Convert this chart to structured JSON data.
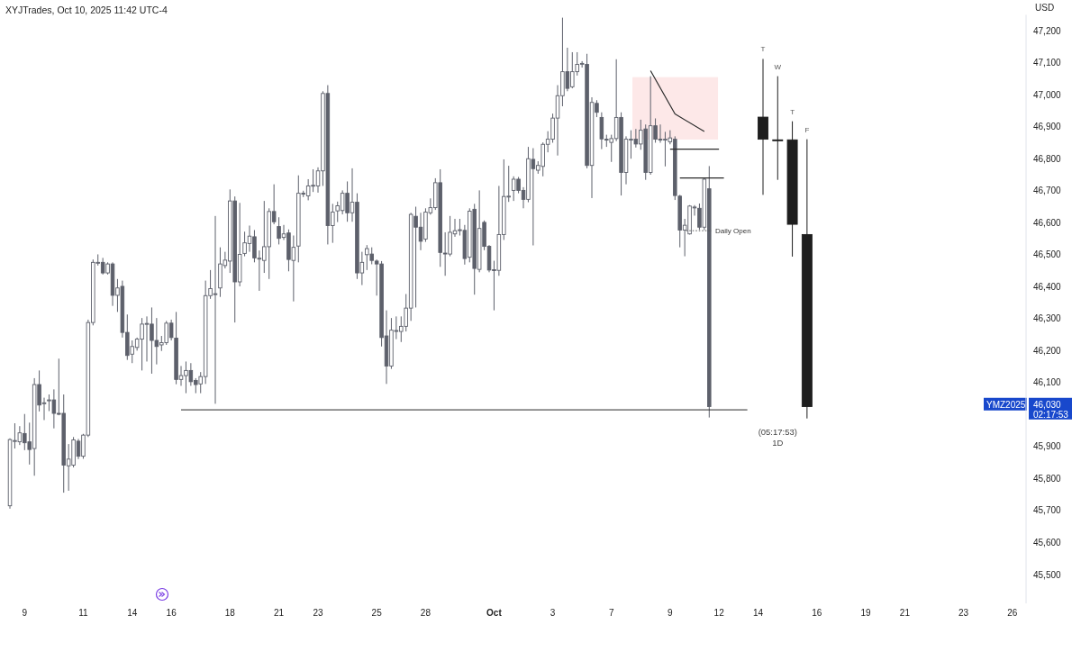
{
  "chart_data": {
    "type": "candlestick",
    "title": "XYJTrades, Oct 10, 2025 11:42 UTC-4",
    "ylabel": "USD",
    "categories": [
      null,
      null,
      null,
      "9",
      null,
      null,
      null,
      null,
      null,
      null,
      null,
      null,
      null,
      null,
      null,
      "11",
      null,
      null,
      null,
      null,
      null,
      null,
      null,
      null,
      null,
      "14",
      null,
      null,
      null,
      null,
      null,
      null,
      null,
      "16",
      null,
      null,
      null,
      null,
      null,
      null,
      null,
      null,
      null,
      null,
      null,
      "18",
      null,
      null,
      null,
      null,
      null,
      null,
      null,
      null,
      null,
      "21",
      null,
      null,
      null,
      null,
      null,
      null,
      null,
      "23",
      null,
      null,
      null,
      null,
      null,
      null,
      null,
      null,
      null,
      null,
      null,
      "25",
      null,
      null,
      null,
      null,
      null,
      null,
      null,
      null,
      null,
      "28",
      null,
      null,
      null,
      null,
      null,
      null,
      null,
      null,
      null,
      null,
      null,
      null,
      null,
      "Oct",
      null,
      null,
      null,
      null,
      null,
      null,
      null,
      null,
      null,
      null,
      null,
      "3",
      null,
      null,
      null,
      null,
      null,
      null,
      null,
      null,
      null,
      null,
      null,
      "7",
      null,
      null,
      null,
      null,
      null,
      null,
      null,
      null,
      null,
      null,
      null,
      "9",
      null,
      null,
      null,
      null,
      null,
      null,
      null,
      null,
      null,
      "12",
      null,
      null,
      null,
      null,
      null,
      null,
      null,
      "14",
      null,
      null,
      null,
      null,
      null,
      null,
      null,
      null,
      null,
      null,
      null,
      "16",
      null,
      null,
      null,
      null,
      null,
      null,
      null,
      null,
      null,
      "19",
      null,
      null,
      null,
      null,
      null,
      null,
      null,
      "21",
      null,
      null,
      null,
      null,
      null,
      null,
      null,
      null,
      null,
      null,
      null,
      "23",
      null,
      null,
      null,
      null,
      null,
      null,
      null,
      null,
      null,
      "26",
      null
    ],
    "ylim": [
      45410,
      47250
    ],
    "yticks": [
      {
        "value": 45500,
        "label": "45,500"
      },
      {
        "value": 45600,
        "label": "45,600"
      },
      {
        "value": 45700,
        "label": "45,700"
      },
      {
        "value": 45800,
        "label": "45,800"
      },
      {
        "value": 45900,
        "label": "45,900"
      },
      {
        "value": 46100,
        "label": "46,100"
      },
      {
        "value": 46200,
        "label": "46,200"
      },
      {
        "value": 46300,
        "label": "46,300"
      },
      {
        "value": 46400,
        "label": "46,400"
      },
      {
        "value": 46500,
        "label": "46,500"
      },
      {
        "value": 46600,
        "label": "46,600"
      },
      {
        "value": 46700,
        "label": "46,700"
      },
      {
        "value": 46800,
        "label": "46,800"
      },
      {
        "value": 46900,
        "label": "46,900"
      },
      {
        "value": 47000,
        "label": "47,000"
      },
      {
        "value": 47100,
        "label": "47,100"
      },
      {
        "value": 47200,
        "label": "47,200"
      }
    ],
    "series": [
      {
        "color": "#5d606b",
        "ohlc": [
          [
            45715,
            45926,
            45706,
            45922
          ],
          [
            45917,
            45973,
            45894,
            45919
          ],
          [
            45915,
            45964,
            45905,
            45943
          ],
          [
            45941,
            46002,
            45889,
            45912
          ],
          [
            45915,
            45975,
            45844,
            45891
          ],
          [
            45894,
            46114,
            45809,
            46094
          ],
          [
            46094,
            46138,
            46010,
            46030
          ],
          [
            46035,
            46053,
            45983,
            46037
          ],
          [
            46044,
            46063,
            46011,
            46046
          ],
          [
            46046,
            46079,
            45957,
            46004
          ],
          [
            46004,
            46175,
            45998,
            46002
          ],
          [
            46004,
            46063,
            45756,
            45842
          ],
          [
            45840,
            45908,
            45762,
            45861
          ],
          [
            45842,
            45930,
            45835,
            45921
          ],
          [
            45917,
            45924,
            45861,
            45870
          ],
          [
            45870,
            45940,
            45862,
            45936
          ],
          [
            45936,
            46297,
            45930,
            46288
          ],
          [
            46288,
            46485,
            46279,
            46476
          ],
          [
            46474,
            46501,
            46466,
            46476
          ],
          [
            46476,
            46490,
            46438,
            46443
          ],
          [
            46443,
            46476,
            46438,
            46471
          ],
          [
            46471,
            46476,
            46340,
            46373
          ],
          [
            46373,
            46424,
            46321,
            46396
          ],
          [
            46401,
            46419,
            46241,
            46257
          ],
          [
            46257,
            46313,
            46171,
            46185
          ],
          [
            46189,
            46232,
            46161,
            46213
          ],
          [
            46210,
            46241,
            46200,
            46236
          ],
          [
            46236,
            46302,
            46138,
            46283
          ],
          [
            46283,
            46307,
            46166,
            46285
          ],
          [
            46283,
            46335,
            46128,
            46232
          ],
          [
            46232,
            46302,
            46157,
            46213
          ],
          [
            46218,
            46246,
            46199,
            46225
          ],
          [
            46225,
            46293,
            46218,
            46286
          ],
          [
            46286,
            46297,
            46232,
            46241
          ],
          [
            46239,
            46321,
            46095,
            46110
          ],
          [
            46110,
            46152,
            46090,
            46122
          ],
          [
            46122,
            46166,
            46067,
            46138
          ],
          [
            46138,
            46161,
            46090,
            46103
          ],
          [
            46107,
            46114,
            46067,
            46094
          ],
          [
            46096,
            46133,
            46067,
            46119
          ],
          [
            46119,
            46419,
            46096,
            46372
          ],
          [
            46372,
            46452,
            46362,
            46394
          ],
          [
            46377,
            46621,
            46034,
            46378
          ],
          [
            46396,
            46523,
            46368,
            46471
          ],
          [
            46466,
            46509,
            46457,
            46483
          ],
          [
            46480,
            46704,
            46443,
            46668
          ],
          [
            46668,
            46682,
            46288,
            46415
          ],
          [
            46415,
            46662,
            46401,
            46501
          ],
          [
            46504,
            46572,
            46495,
            46537
          ],
          [
            46535,
            46591,
            46509,
            46558
          ],
          [
            46556,
            46577,
            46476,
            46490
          ],
          [
            46488,
            46513,
            46387,
            46489
          ],
          [
            46482,
            46668,
            46443,
            46525
          ],
          [
            46525,
            46645,
            46424,
            46635
          ],
          [
            46635,
            46720,
            46595,
            46603
          ],
          [
            46588,
            46617,
            46532,
            46551
          ],
          [
            46554,
            46593,
            46546,
            46565
          ],
          [
            46568,
            46579,
            46448,
            46485
          ],
          [
            46482,
            46560,
            46354,
            46523
          ],
          [
            46527,
            46748,
            46476,
            46692
          ],
          [
            46692,
            46700,
            46680,
            46690
          ],
          [
            46684,
            46736,
            46670,
            46715
          ],
          [
            46716,
            46767,
            46696,
            46717
          ],
          [
            46715,
            46773,
            46694,
            46762
          ],
          [
            46762,
            47011,
            46715,
            47004
          ],
          [
            47004,
            47030,
            46532,
            46591
          ],
          [
            46591,
            46659,
            46537,
            46633
          ],
          [
            46637,
            46666,
            46602,
            46653
          ],
          [
            46638,
            46701,
            46626,
            46692
          ],
          [
            46692,
            46729,
            46603,
            46631
          ],
          [
            46631,
            46770,
            46603,
            46664
          ],
          [
            46664,
            46692,
            46424,
            46443
          ],
          [
            46443,
            46509,
            46405,
            46476
          ],
          [
            46500,
            46530,
            46452,
            46519
          ],
          [
            46502,
            46523,
            46470,
            46482
          ],
          [
            46480,
            46485,
            46372,
            46471
          ],
          [
            46471,
            46480,
            46213,
            46241
          ],
          [
            46246,
            46326,
            46096,
            46152
          ],
          [
            46152,
            46302,
            46143,
            46264
          ],
          [
            46262,
            46307,
            46236,
            46263
          ],
          [
            46260,
            46307,
            46227,
            46276
          ],
          [
            46276,
            46377,
            46260,
            46333
          ],
          [
            46333,
            46631,
            46293,
            46626
          ],
          [
            46620,
            46650,
            46335,
            46586
          ],
          [
            46586,
            46631,
            46514,
            46542
          ],
          [
            46549,
            46645,
            46540,
            46633
          ],
          [
            46631,
            46676,
            46625,
            46647
          ],
          [
            46647,
            46739,
            46640,
            46725
          ],
          [
            46725,
            46767,
            46462,
            46507
          ],
          [
            46505,
            46570,
            46434,
            46504
          ],
          [
            46502,
            46621,
            46495,
            46570
          ],
          [
            46565,
            46612,
            46556,
            46575
          ],
          [
            46577,
            46612,
            46560,
            46578
          ],
          [
            46576,
            46593,
            46469,
            46488
          ],
          [
            46492,
            46645,
            46476,
            46636
          ],
          [
            46642,
            46659,
            46375,
            46457
          ],
          [
            46454,
            46701,
            46445,
            46582
          ],
          [
            46601,
            46607,
            46514,
            46526
          ],
          [
            46526,
            46530,
            46445,
            46452
          ],
          [
            46453,
            46481,
            46326,
            46452
          ],
          [
            46451,
            46715,
            46434,
            46563
          ],
          [
            46563,
            46798,
            46546,
            46682
          ],
          [
            46682,
            46778,
            46665,
            46683
          ],
          [
            46701,
            46745,
            46668,
            46736
          ],
          [
            46736,
            46743,
            46692,
            46701
          ],
          [
            46701,
            46711,
            46645,
            46673
          ],
          [
            46673,
            46837,
            46664,
            46800
          ],
          [
            46798,
            46833,
            46529,
            46769
          ],
          [
            46764,
            46792,
            46753,
            46779
          ],
          [
            46776,
            46851,
            46745,
            46845
          ],
          [
            46845,
            46886,
            46820,
            46861
          ],
          [
            46861,
            46941,
            46850,
            46927
          ],
          [
            46927,
            47030,
            46810,
            46997
          ],
          [
            46997,
            47241,
            46964,
            47072
          ],
          [
            47072,
            47147,
            47011,
            47020
          ],
          [
            47025,
            47133,
            47020,
            47072
          ],
          [
            47072,
            47133,
            47060,
            47095
          ],
          [
            47097,
            47105,
            47085,
            47098
          ],
          [
            47095,
            47128,
            46770,
            46779
          ],
          [
            46779,
            46992,
            46677,
            46976
          ],
          [
            46973,
            46983,
            46930,
            46945
          ],
          [
            46929,
            46945,
            46830,
            46862
          ],
          [
            46861,
            46875,
            46837,
            46860
          ],
          [
            46851,
            46875,
            46790,
            46863
          ],
          [
            46863,
            47111,
            46855,
            46929
          ],
          [
            46929,
            46945,
            46685,
            46757
          ],
          [
            46757,
            46870,
            46720,
            46861
          ],
          [
            46860,
            46889,
            46800,
            46861
          ],
          [
            46861,
            46893,
            46835,
            46846
          ],
          [
            46846,
            46922,
            46828,
            46889
          ],
          [
            46893,
            46907,
            46734,
            46757
          ],
          [
            46757,
            47058,
            46750,
            46903
          ],
          [
            46903,
            46926,
            46850,
            46861
          ],
          [
            46861,
            46907,
            46850,
            46860
          ],
          [
            46860,
            46884,
            46776,
            46861
          ],
          [
            46853,
            46889,
            46845,
            46865
          ],
          [
            46861,
            46870,
            46671,
            46685
          ],
          [
            46683,
            46687,
            46523,
            46577
          ],
          [
            46577,
            46612,
            46495,
            46592
          ],
          [
            46565,
            46655,
            46563,
            46652
          ],
          [
            46648,
            46655,
            46622,
            46649
          ],
          [
            46645,
            46660,
            46578,
            46586
          ],
          [
            46586,
            46739,
            46577,
            46736
          ],
          [
            46706,
            46777,
            45991,
            46025
          ],
          null,
          null,
          null,
          null,
          null,
          null,
          null,
          null,
          null,
          null,
          null,
          null,
          null,
          null,
          null,
          null,
          null,
          null,
          null,
          null,
          null,
          null,
          null,
          null,
          null,
          null,
          null,
          null,
          null,
          null,
          null,
          null,
          null,
          null,
          null,
          null,
          null,
          null,
          null,
          null,
          null,
          null,
          null,
          null,
          null,
          null,
          null,
          null,
          null,
          null,
          null,
          null,
          null,
          null,
          null,
          null,
          null,
          null,
          null,
          null,
          null,
          null,
          null
        ]
      },
      {
        "color": "#1e1e1e",
        "ohlc": [
          null,
          null,
          null,
          null,
          null,
          null,
          null,
          null,
          null,
          null,
          null,
          null,
          null,
          null,
          null,
          null,
          null,
          null,
          null,
          null,
          null,
          null,
          null,
          null,
          null,
          null,
          null,
          null,
          null,
          null,
          null,
          null,
          null,
          null,
          null,
          null,
          null,
          null,
          null,
          null,
          null,
          null,
          null,
          null,
          null,
          null,
          null,
          null,
          null,
          null,
          null,
          null,
          null,
          null,
          null,
          null,
          null,
          null,
          null,
          null,
          null,
          null,
          null,
          null,
          null,
          null,
          null,
          null,
          null,
          null,
          null,
          null,
          null,
          null,
          null,
          null,
          null,
          null,
          null,
          null,
          null,
          null,
          null,
          null,
          null,
          null,
          null,
          null,
          null,
          null,
          null,
          null,
          null,
          null,
          null,
          null,
          null,
          null,
          null,
          null,
          null,
          null,
          null,
          null,
          null,
          null,
          null,
          null,
          null,
          null,
          null,
          null,
          null,
          null,
          null,
          null,
          null,
          null,
          null,
          null,
          null,
          null,
          null,
          null,
          null,
          null,
          null,
          null,
          null,
          null,
          null,
          null,
          null,
          null,
          null,
          null,
          null,
          null,
          null,
          null,
          null,
          null,
          null,
          null,
          null,
          null,
          null,
          null,
          null,
          null,
          null,
          null,
          null,
          null,
          [
            46930,
            47112,
            46687,
            46861
          ],
          null,
          null,
          [
            46859,
            47058,
            46734,
            46858
          ],
          null,
          null,
          [
            46859,
            46917,
            46494,
            46595
          ],
          null,
          null,
          [
            46563,
            46861,
            45988,
            46025
          ],
          null,
          null,
          null,
          null,
          null,
          null,
          null,
          null,
          null,
          null,
          null,
          null,
          null,
          null,
          null,
          null,
          null,
          null,
          null,
          null,
          null,
          null,
          null,
          null,
          null,
          null,
          null,
          null,
          null,
          null,
          null,
          null,
          null,
          null,
          null,
          null,
          null,
          null,
          null,
          null,
          null,
          null,
          null
        ]
      },
      {
        "type": "line",
        "color": "#2a2a2a",
        "values": [
          null,
          null,
          null,
          null,
          null,
          null,
          null,
          null,
          null,
          null,
          null,
          null,
          null,
          null,
          null,
          null,
          null,
          null,
          null,
          null,
          null,
          null,
          null,
          null,
          null,
          null,
          null,
          null,
          null,
          null,
          null,
          null,
          null,
          null,
          null,
          null,
          null,
          null,
          null,
          null,
          null,
          null,
          null,
          null,
          null,
          null,
          null,
          null,
          null,
          null,
          null,
          null,
          null,
          null,
          null,
          null,
          null,
          null,
          null,
          null,
          null,
          null,
          null,
          null,
          null,
          null,
          null,
          null,
          null,
          null,
          null,
          null,
          null,
          null,
          null,
          null,
          null,
          null,
          null,
          null,
          null,
          null,
          null,
          null,
          null,
          null,
          null,
          null,
          null,
          null,
          null,
          null,
          null,
          null,
          null,
          null,
          null,
          null,
          null,
          null,
          null,
          null,
          null,
          null,
          null,
          null,
          null,
          null,
          null,
          null,
          null,
          null,
          null,
          null,
          null,
          null,
          null,
          null,
          null,
          null,
          null,
          null,
          null,
          null,
          null,
          null,
          null,
          null,
          null,
          null,
          null,
          47075,
          null,
          null,
          null,
          null,
          46940,
          null,
          null,
          null,
          null,
          null,
          46885,
          null,
          null,
          null,
          null,
          null,
          null,
          null,
          null,
          null,
          null,
          null,
          null,
          null,
          null,
          null,
          null,
          null,
          null,
          null,
          null,
          null,
          null,
          null,
          null,
          null,
          null,
          null,
          null,
          null,
          null,
          null,
          null,
          null,
          null,
          null,
          null,
          null,
          null,
          null,
          null,
          null,
          null,
          null,
          null,
          null,
          null,
          null,
          null,
          null,
          null,
          null,
          null,
          null,
          null,
          null,
          null,
          null,
          null,
          null,
          null,
          null,
          null,
          null,
          null
        ]
      },
      {
        "type": "line",
        "color": "#2a2a2a",
        "values": [
          null,
          null,
          null,
          null,
          null,
          null,
          null,
          null,
          null,
          null,
          null,
          null,
          null,
          null,
          null,
          null,
          null,
          null,
          null,
          null,
          null,
          null,
          null,
          null,
          null,
          null,
          null,
          null,
          null,
          null,
          null,
          null,
          null,
          null,
          null,
          null,
          null,
          null,
          null,
          null,
          null,
          null,
          null,
          null,
          null,
          null,
          null,
          null,
          null,
          null,
          null,
          null,
          null,
          null,
          null,
          null,
          null,
          null,
          null,
          null,
          null,
          null,
          null,
          null,
          null,
          null,
          null,
          null,
          null,
          null,
          null,
          null,
          null,
          null,
          null,
          null,
          null,
          null,
          null,
          null,
          null,
          null,
          null,
          null,
          null,
          null,
          null,
          null,
          null,
          null,
          null,
          null,
          null,
          null,
          null,
          null,
          null,
          null,
          null,
          null,
          null,
          null,
          null,
          null,
          null,
          null,
          null,
          null,
          null,
          null,
          null,
          null,
          null,
          null,
          null,
          null,
          null,
          null,
          null,
          null,
          null,
          null,
          null,
          null,
          null,
          null,
          null,
          null,
          null,
          null,
          null,
          null,
          null,
          null,
          null,
          46830,
          null,
          null,
          null,
          null,
          null,
          null,
          null,
          null,
          null,
          46830,
          null,
          null,
          null,
          null,
          null,
          null,
          null,
          null,
          null,
          null,
          null,
          null,
          null,
          null,
          null,
          null,
          null,
          null,
          null,
          null,
          null,
          null,
          null,
          null,
          null,
          null,
          null,
          null,
          null,
          null,
          null,
          null,
          null,
          null,
          null,
          null,
          null,
          null,
          null,
          null,
          null,
          null,
          null,
          null,
          null,
          null,
          null,
          null,
          null,
          null,
          null,
          null,
          null,
          null,
          null,
          null,
          null,
          null,
          null,
          null,
          null
        ]
      },
      {
        "type": "line",
        "color": "#2a2a2a",
        "values": [
          null,
          null,
          null,
          null,
          null,
          null,
          null,
          null,
          null,
          null,
          null,
          null,
          null,
          null,
          null,
          null,
          null,
          null,
          null,
          null,
          null,
          null,
          null,
          null,
          null,
          null,
          null,
          null,
          null,
          null,
          null,
          null,
          null,
          null,
          null,
          null,
          null,
          null,
          null,
          null,
          null,
          null,
          null,
          null,
          null,
          null,
          null,
          null,
          null,
          null,
          null,
          null,
          null,
          null,
          null,
          null,
          null,
          null,
          null,
          null,
          null,
          null,
          null,
          null,
          null,
          null,
          null,
          null,
          null,
          null,
          null,
          null,
          null,
          null,
          null,
          null,
          null,
          null,
          null,
          null,
          null,
          null,
          null,
          null,
          null,
          null,
          null,
          null,
          null,
          null,
          null,
          null,
          null,
          null,
          null,
          null,
          null,
          null,
          null,
          null,
          null,
          null,
          null,
          null,
          null,
          null,
          null,
          null,
          null,
          null,
          null,
          null,
          null,
          null,
          null,
          null,
          null,
          null,
          null,
          null,
          null,
          null,
          null,
          null,
          null,
          null,
          null,
          null,
          null,
          null,
          null,
          null,
          null,
          null,
          null,
          null,
          null,
          46740,
          null,
          null,
          null,
          null,
          null,
          null,
          null,
          null,
          46740,
          null,
          null,
          null,
          null,
          null,
          null,
          null,
          null,
          null,
          null,
          null,
          null,
          null,
          null,
          null,
          null,
          null,
          null,
          null,
          null,
          null,
          null,
          null,
          null,
          null,
          null,
          null,
          null,
          null,
          null,
          null,
          null,
          null,
          null,
          null,
          null,
          null,
          null,
          null,
          null,
          null,
          null,
          null,
          null,
          null,
          null,
          null,
          null,
          null,
          null,
          null,
          null,
          null,
          null,
          null,
          null,
          null,
          null,
          null,
          null
        ]
      }
    ],
    "ref_lines": [
      {
        "axis": "y",
        "value": 46015,
        "color": "#2a2a2a"
      },
      {
        "axis": "y",
        "value": 46575,
        "label": "Daily Open",
        "color": "#555555",
        "line_style": "dotted"
      }
    ],
    "bands": [
      {
        "axis": "y",
        "from": 46860,
        "to": 47055,
        "color": "#fde8e8"
      }
    ],
    "annotations": [
      "T",
      "W",
      "T",
      "F",
      "(05:17:53)",
      "1D",
      "46,030",
      "02:17:53",
      "YMZ2025"
    ]
  }
}
